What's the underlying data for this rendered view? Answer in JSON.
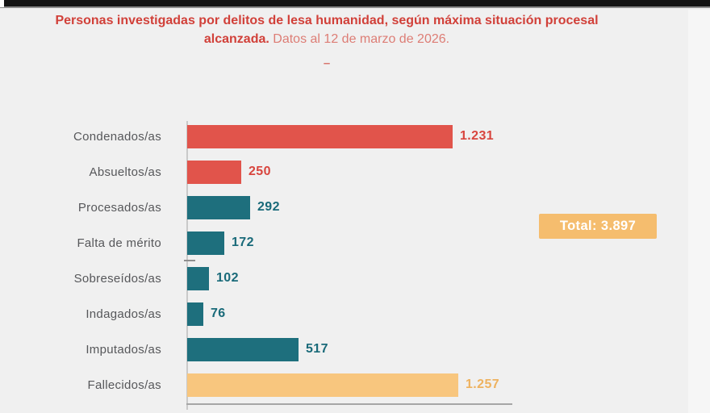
{
  "window": {
    "top_bar_color": "#141414",
    "background_color": "#f0f0f0",
    "right_strip_color": "#f6f6f6"
  },
  "header": {
    "title_bold": "Personas investigadas por delitos de lesa humanidad, según máxima situación procesal alcanzada.",
    "title_regular": "Datos al 12 de marzo de 2026.",
    "dash": "–",
    "title_bold_color": "#d14039",
    "title_regular_color": "#dd7d75",
    "dash_color": "#d7746d"
  },
  "chart_data": {
    "type": "bar",
    "orientation": "horizontal",
    "title": "Personas investigadas por delitos de lesa humanidad, según máxima situación procesal alcanzada.",
    "subtitle": "Datos al 12 de marzo de 2026.",
    "categories": [
      "Condenados/as",
      "Absueltos/as",
      "Procesados/as",
      "Falta de mérito",
      "Sobreseídos/as",
      "Indagados/as",
      "Imputados/as",
      "Fallecidos/as"
    ],
    "values": [
      1231,
      250,
      292,
      172,
      102,
      76,
      517,
      1257
    ],
    "value_labels": [
      "1.231",
      "250",
      "292",
      "172",
      "102",
      "76",
      "517",
      "1.257"
    ],
    "bar_colors": [
      "#e1544b",
      "#e1544b",
      "#1e6f7d",
      "#1e6f7d",
      "#1e6f7d",
      "#1e6f7d",
      "#1e6f7d",
      "#f8c67e"
    ],
    "value_label_colors": [
      "#d8453e",
      "#d8453e",
      "#196a79",
      "#196a79",
      "#196a79",
      "#196a79",
      "#196a79",
      "#eeb25f"
    ],
    "xlim": [
      0,
      1257
    ],
    "grid": false,
    "legend": false,
    "axis_color": "#a6a6a6",
    "total": {
      "label": "Total: 3.897",
      "value": 3897,
      "badge_bg": "#f5bd6e",
      "badge_text_color": "#ffffff"
    }
  }
}
